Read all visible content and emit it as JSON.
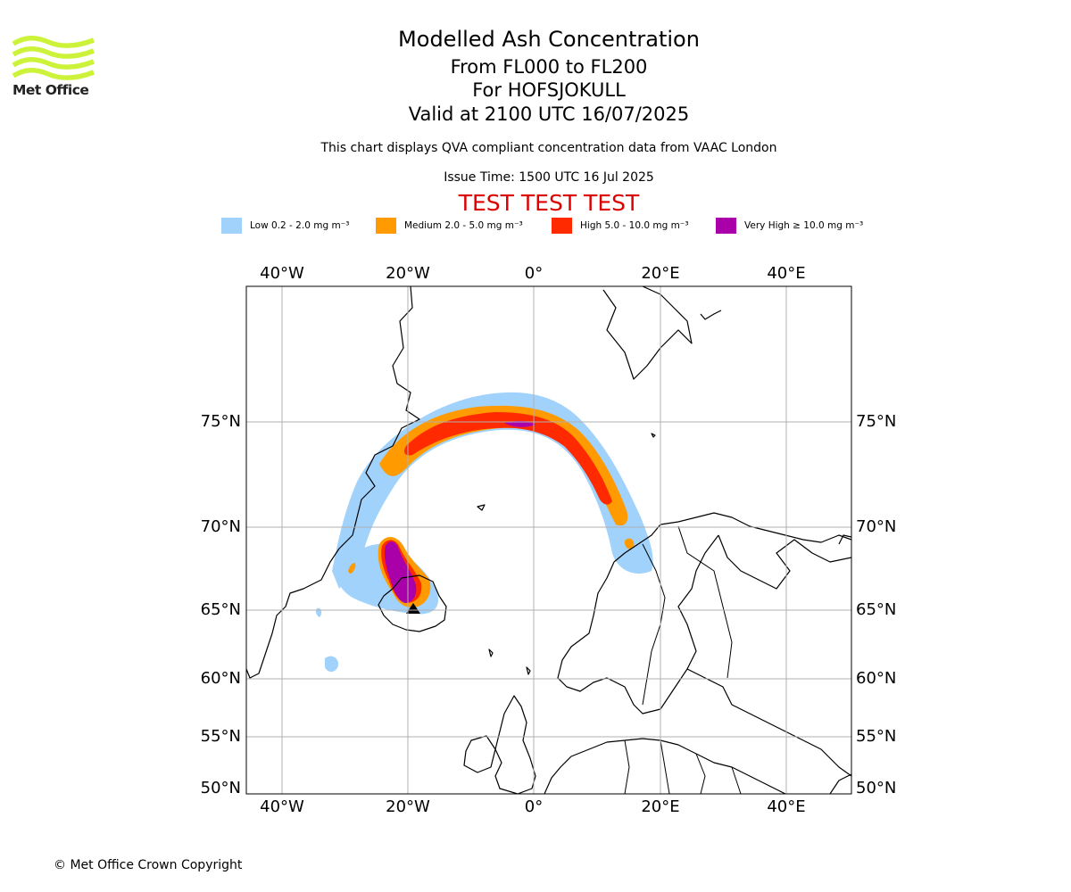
{
  "logo": {
    "text": "Met Office",
    "color": "#ccf23a"
  },
  "title": {
    "line1": "Modelled Ash Concentration",
    "line2": "From FL000 to FL200",
    "line3": "For HOFSJOKULL",
    "line4": "Valid at 2100 UTC 16/07/2025"
  },
  "subtitle": "This chart displays QVA compliant concentration data from VAAC London",
  "issue_time": "Issue Time: 1500 UTC 16 Jul 2025",
  "test_banner": "TEST TEST TEST",
  "legend": [
    {
      "label": "Low 0.2 - 2.0 mg m⁻³",
      "color": "#a0d2fc"
    },
    {
      "label": "Medium 2.0 - 5.0 mg m⁻³",
      "color": "#ff9a00"
    },
    {
      "label": "High 5.0 - 10.0 mg m⁻³",
      "color": "#ff2a00"
    },
    {
      "label": "Very High  ≥  10.0 mg m⁻³",
      "color": "#aa00aa"
    }
  ],
  "map": {
    "lon_labels": [
      "40°W",
      "20°W",
      "0°",
      "20°E",
      "40°E"
    ],
    "lat_labels": [
      "75°N",
      "70°N",
      "65°N",
      "60°N",
      "55°N",
      "50°N"
    ],
    "gridlines": true,
    "volcano": "HOFSJOKULL"
  },
  "copyright": "© Met Office Crown Copyright"
}
